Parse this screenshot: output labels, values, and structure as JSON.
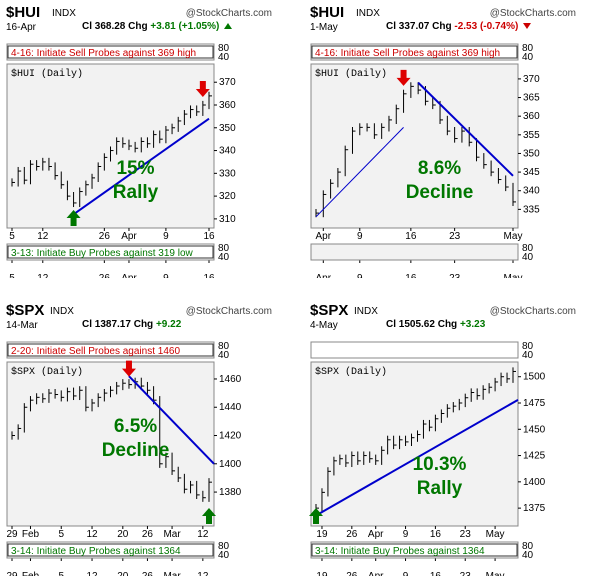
{
  "chart_data": [
    {
      "type": "line",
      "id": "hui_rally",
      "symbol": "$HUI",
      "exchange": "INDX",
      "site": "@StockCharts.com",
      "date": "16-Apr",
      "close_label": "Cl",
      "close": "368.28",
      "chg_label": "Chg",
      "chg": "+3.81 (+1.05%)",
      "direction": "up",
      "top_indicator": {
        "text": "4-16: Initiate Sell Probes against 369 high",
        "color": "#cc0000",
        "scale": [
          "80",
          "40"
        ]
      },
      "bottom_indicator": {
        "text": "3-13: Initiate Buy Probes against 319 low",
        "color": "#007700",
        "scale": [
          "80",
          "40"
        ]
      },
      "price_label": "$HUI (Daily)",
      "ylim": [
        306,
        378
      ],
      "y_ticks": [
        310,
        320,
        330,
        340,
        350,
        360,
        370
      ],
      "x_ticks": [
        {
          "i": 0,
          "label": "5"
        },
        {
          "i": 5,
          "label": "12"
        },
        {
          "i": 15,
          "label": "26"
        },
        {
          "i": 19,
          "label": "Apr"
        },
        {
          "i": 25,
          "label": "9"
        },
        {
          "i": 32,
          "label": "16"
        }
      ],
      "n": 33,
      "closes": [
        326,
        331,
        327,
        334,
        333,
        335,
        333,
        329,
        325,
        320,
        317,
        322,
        325,
        328,
        333,
        337,
        340,
        344,
        343,
        342,
        341,
        344,
        343,
        347,
        345,
        349,
        350,
        353,
        356,
        358,
        357,
        360,
        364
      ],
      "trendline": {
        "from": [
          10,
          312
        ],
        "to": [
          32,
          354
        ],
        "color": "#0000cc"
      },
      "arrows": [
        {
          "i": 31,
          "kind": "sell"
        },
        {
          "i": 10,
          "kind": "buy"
        }
      ],
      "annotation": [
        "15%",
        "Rally"
      ]
    },
    {
      "type": "line",
      "id": "hui_decline",
      "symbol": "$HUI",
      "exchange": "INDX",
      "site": "@StockCharts.com",
      "date": "1-May",
      "close_label": "Cl",
      "close": "337.07",
      "chg_label": "Chg",
      "chg": "-2.53 (-0.74%)",
      "direction": "down",
      "top_indicator": {
        "text": "4-16: Initiate Sell Probes against 369 high",
        "color": "#cc0000",
        "scale": [
          "80",
          "40"
        ]
      },
      "bottom_indicator": {
        "text": "",
        "color": "#007700",
        "scale": [
          "80",
          "40"
        ]
      },
      "price_label": "$HUI (Daily)",
      "ylim": [
        330,
        374
      ],
      "y_ticks": [
        335,
        340,
        345,
        350,
        355,
        360,
        365,
        370
      ],
      "x_ticks": [
        {
          "i": 1,
          "label": "Apr"
        },
        {
          "i": 6,
          "label": "9"
        },
        {
          "i": 13,
          "label": "16"
        },
        {
          "i": 19,
          "label": "23"
        },
        {
          "i": 27,
          "label": "May"
        }
      ],
      "n": 28,
      "closes": [
        334,
        339,
        342,
        345,
        351,
        356,
        357,
        357,
        355,
        357,
        359,
        362,
        366,
        368,
        367,
        364,
        363,
        359,
        356,
        354,
        356,
        353,
        349,
        347,
        345,
        343,
        341,
        337
      ],
      "trendline": {
        "from": [
          14,
          369
        ],
        "to": [
          27,
          344
        ],
        "color": "#0000cc"
      },
      "thinline": {
        "from": [
          0,
          333
        ],
        "to": [
          12,
          357
        ],
        "color": "#0000cc"
      },
      "arrows": [
        {
          "i": 12,
          "kind": "sell"
        }
      ],
      "annotation": [
        "8.6%",
        "Decline"
      ]
    },
    {
      "type": "line",
      "id": "spx_decline",
      "symbol": "$SPX",
      "exchange": "INDX",
      "site": "@StockCharts.com",
      "date": "14-Mar",
      "close_label": "Cl",
      "close": "1387.17",
      "chg_label": "Chg",
      "chg": "+9.22",
      "direction": "up",
      "top_indicator": {
        "text": "2-20: Initiate Sell Probes against 1460",
        "color": "#cc0000",
        "scale": [
          "80",
          "40"
        ]
      },
      "bottom_indicator": {
        "text": "3-14: Initiate Buy Probes against 1364",
        "color": "#007700",
        "scale": [
          "80",
          "40"
        ]
      },
      "price_label": "$SPX (Daily)",
      "ylim": [
        1356,
        1472
      ],
      "y_ticks": [
        1380,
        1400,
        1420,
        1440,
        1460
      ],
      "x_ticks": [
        {
          "i": 0,
          "label": "29"
        },
        {
          "i": 3,
          "label": "Feb"
        },
        {
          "i": 8,
          "label": "5"
        },
        {
          "i": 13,
          "label": "12"
        },
        {
          "i": 18,
          "label": "20"
        },
        {
          "i": 22,
          "label": "26"
        },
        {
          "i": 26,
          "label": "Mar"
        },
        {
          "i": 31,
          "label": "12"
        }
      ],
      "n": 33,
      "closes": [
        1420,
        1425,
        1440,
        1445,
        1447,
        1446,
        1450,
        1449,
        1447,
        1451,
        1448,
        1452,
        1440,
        1443,
        1447,
        1450,
        1452,
        1455,
        1457,
        1456,
        1458,
        1455,
        1452,
        1445,
        1400,
        1405,
        1395,
        1390,
        1382,
        1385,
        1378,
        1376,
        1387
      ],
      "trendline": {
        "from": [
          19,
          1462
        ],
        "to": [
          33,
          1400
        ],
        "color": "#0000cc"
      },
      "arrows": [
        {
          "i": 19,
          "kind": "sell"
        },
        {
          "i": 32,
          "kind": "buy"
        }
      ],
      "annotation": [
        "6.5%",
        "Decline"
      ]
    },
    {
      "type": "line",
      "id": "spx_rally",
      "symbol": "$SPX",
      "exchange": "INDX",
      "site": "@StockCharts.com",
      "date": "4-May",
      "close_label": "Cl",
      "close": "1505.62",
      "chg_label": "Chg",
      "chg": "+3.23",
      "direction": "up",
      "top_indicator": {
        "text": "",
        "color": "#cc0000",
        "scale": [
          "80",
          "40"
        ]
      },
      "bottom_indicator": {
        "text": "3-14: Initiate Buy Probes against 1364",
        "color": "#007700",
        "scale": [
          "80",
          "40"
        ]
      },
      "price_label": "$SPX (Daily)",
      "ylim": [
        1358,
        1514
      ],
      "y_ticks": [
        1375,
        1400,
        1425,
        1450,
        1475,
        1500
      ],
      "x_ticks": [
        {
          "i": 1,
          "label": "19"
        },
        {
          "i": 6,
          "label": "26"
        },
        {
          "i": 10,
          "label": "Apr"
        },
        {
          "i": 15,
          "label": "9"
        },
        {
          "i": 20,
          "label": "16"
        },
        {
          "i": 25,
          "label": "23"
        },
        {
          "i": 30,
          "label": "May"
        }
      ],
      "n": 34,
      "closes": [
        1375,
        1390,
        1410,
        1420,
        1422,
        1418,
        1425,
        1420,
        1425,
        1422,
        1420,
        1430,
        1440,
        1435,
        1440,
        1438,
        1442,
        1445,
        1455,
        1452,
        1460,
        1465,
        1470,
        1472,
        1475,
        1480,
        1485,
        1482,
        1488,
        1490,
        1495,
        1500,
        1498,
        1505
      ],
      "trendline": {
        "from": [
          0,
          1368
        ],
        "to": [
          34,
          1478
        ],
        "color": "#0000cc"
      },
      "arrows": [
        {
          "i": 0,
          "kind": "buy"
        }
      ],
      "annotation": [
        "10.3%",
        "Rally"
      ]
    }
  ]
}
